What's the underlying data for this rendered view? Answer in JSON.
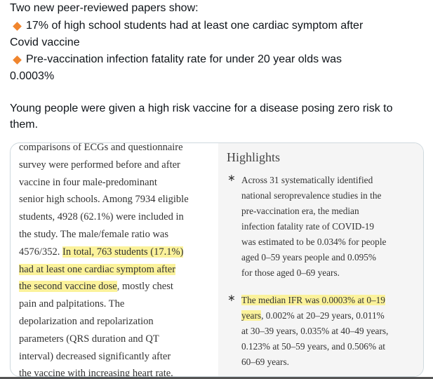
{
  "tweet": {
    "intro": "Two new peer-reviewed papers show:",
    "bullets": [
      {
        "lines": [
          "17% of high school students had at least one cardiac symptom after",
          "Covid vaccine"
        ]
      },
      {
        "lines": [
          "Pre-vaccination infection fatality rate for under 20 year olds was",
          "0.0003%"
        ]
      }
    ],
    "conclusion": [
      "Young people were given a high risk vaccine for a disease posing zero risk to",
      "them."
    ]
  },
  "left_excerpt": {
    "lines": [
      [
        {
          "text": "comparisons of ECGs and questionnaire",
          "highlight": false
        }
      ],
      [
        {
          "text": "survey were performed before and after",
          "highlight": false
        }
      ],
      [
        {
          "text": "vaccine in four male-predominant",
          "highlight": false
        }
      ],
      [
        {
          "text": "senior high schools. Among 7934 eligible",
          "highlight": false
        }
      ],
      [
        {
          "text": "students, 4928 (62.1%) were included in",
          "highlight": false
        }
      ],
      [
        {
          "text": "the study. The male/female ratio was",
          "highlight": false
        }
      ],
      [
        {
          "text": "4576/352. ",
          "highlight": false
        },
        {
          "text": "In total, 763 students (17.1%)",
          "highlight": true
        }
      ],
      [
        {
          "text": "had at least one cardiac symptom after",
          "highlight": true
        }
      ],
      [
        {
          "text": "the second vaccine dose",
          "highlight": true
        },
        {
          "text": ", mostly chest",
          "highlight": false
        }
      ],
      [
        {
          "text": "pain and palpitations. The",
          "highlight": false
        }
      ],
      [
        {
          "text": "depolarization and repolarization",
          "highlight": false
        }
      ],
      [
        {
          "text": "parameters (QRS duration and QT",
          "highlight": false
        }
      ],
      [
        {
          "text": "interval) decreased significantly after",
          "highlight": false
        }
      ],
      [
        {
          "text": "the vaccine with increasing heart rate.",
          "highlight": false
        }
      ]
    ]
  },
  "right_excerpt": {
    "title": "Highlights",
    "items": [
      {
        "lines": [
          [
            {
              "text": "Across 31 systematically identified",
              "highlight": false
            }
          ],
          [
            {
              "text": "national seroprevalence studies in the",
              "highlight": false
            }
          ],
          [
            {
              "text": "pre-vaccination era, the median",
              "highlight": false
            }
          ],
          [
            {
              "text": "infection fatality rate of COVID-19",
              "highlight": false
            }
          ],
          [
            {
              "text": "was estimated to be 0.034% for people",
              "highlight": false
            }
          ],
          [
            {
              "text": "aged 0–59 years people and 0.095%",
              "highlight": false
            }
          ],
          [
            {
              "text": "for those aged 0–69 years.",
              "highlight": false
            }
          ]
        ]
      },
      {
        "lines": [
          [
            {
              "text": "The median IFR was 0.0003% at 0–19",
              "highlight": true
            }
          ],
          [
            {
              "text": "years",
              "highlight": true
            },
            {
              "text": ", 0.002% at 20–29 years, 0.011%",
              "highlight": false
            }
          ],
          [
            {
              "text": "at 30–39 years, 0.035% at 40–49 years,",
              "highlight": false
            }
          ],
          [
            {
              "text": "0.123% at 50–59 years, and 0.506% at",
              "highlight": false
            }
          ],
          [
            {
              "text": "60–69 years.",
              "highlight": false
            }
          ]
        ]
      }
    ]
  }
}
